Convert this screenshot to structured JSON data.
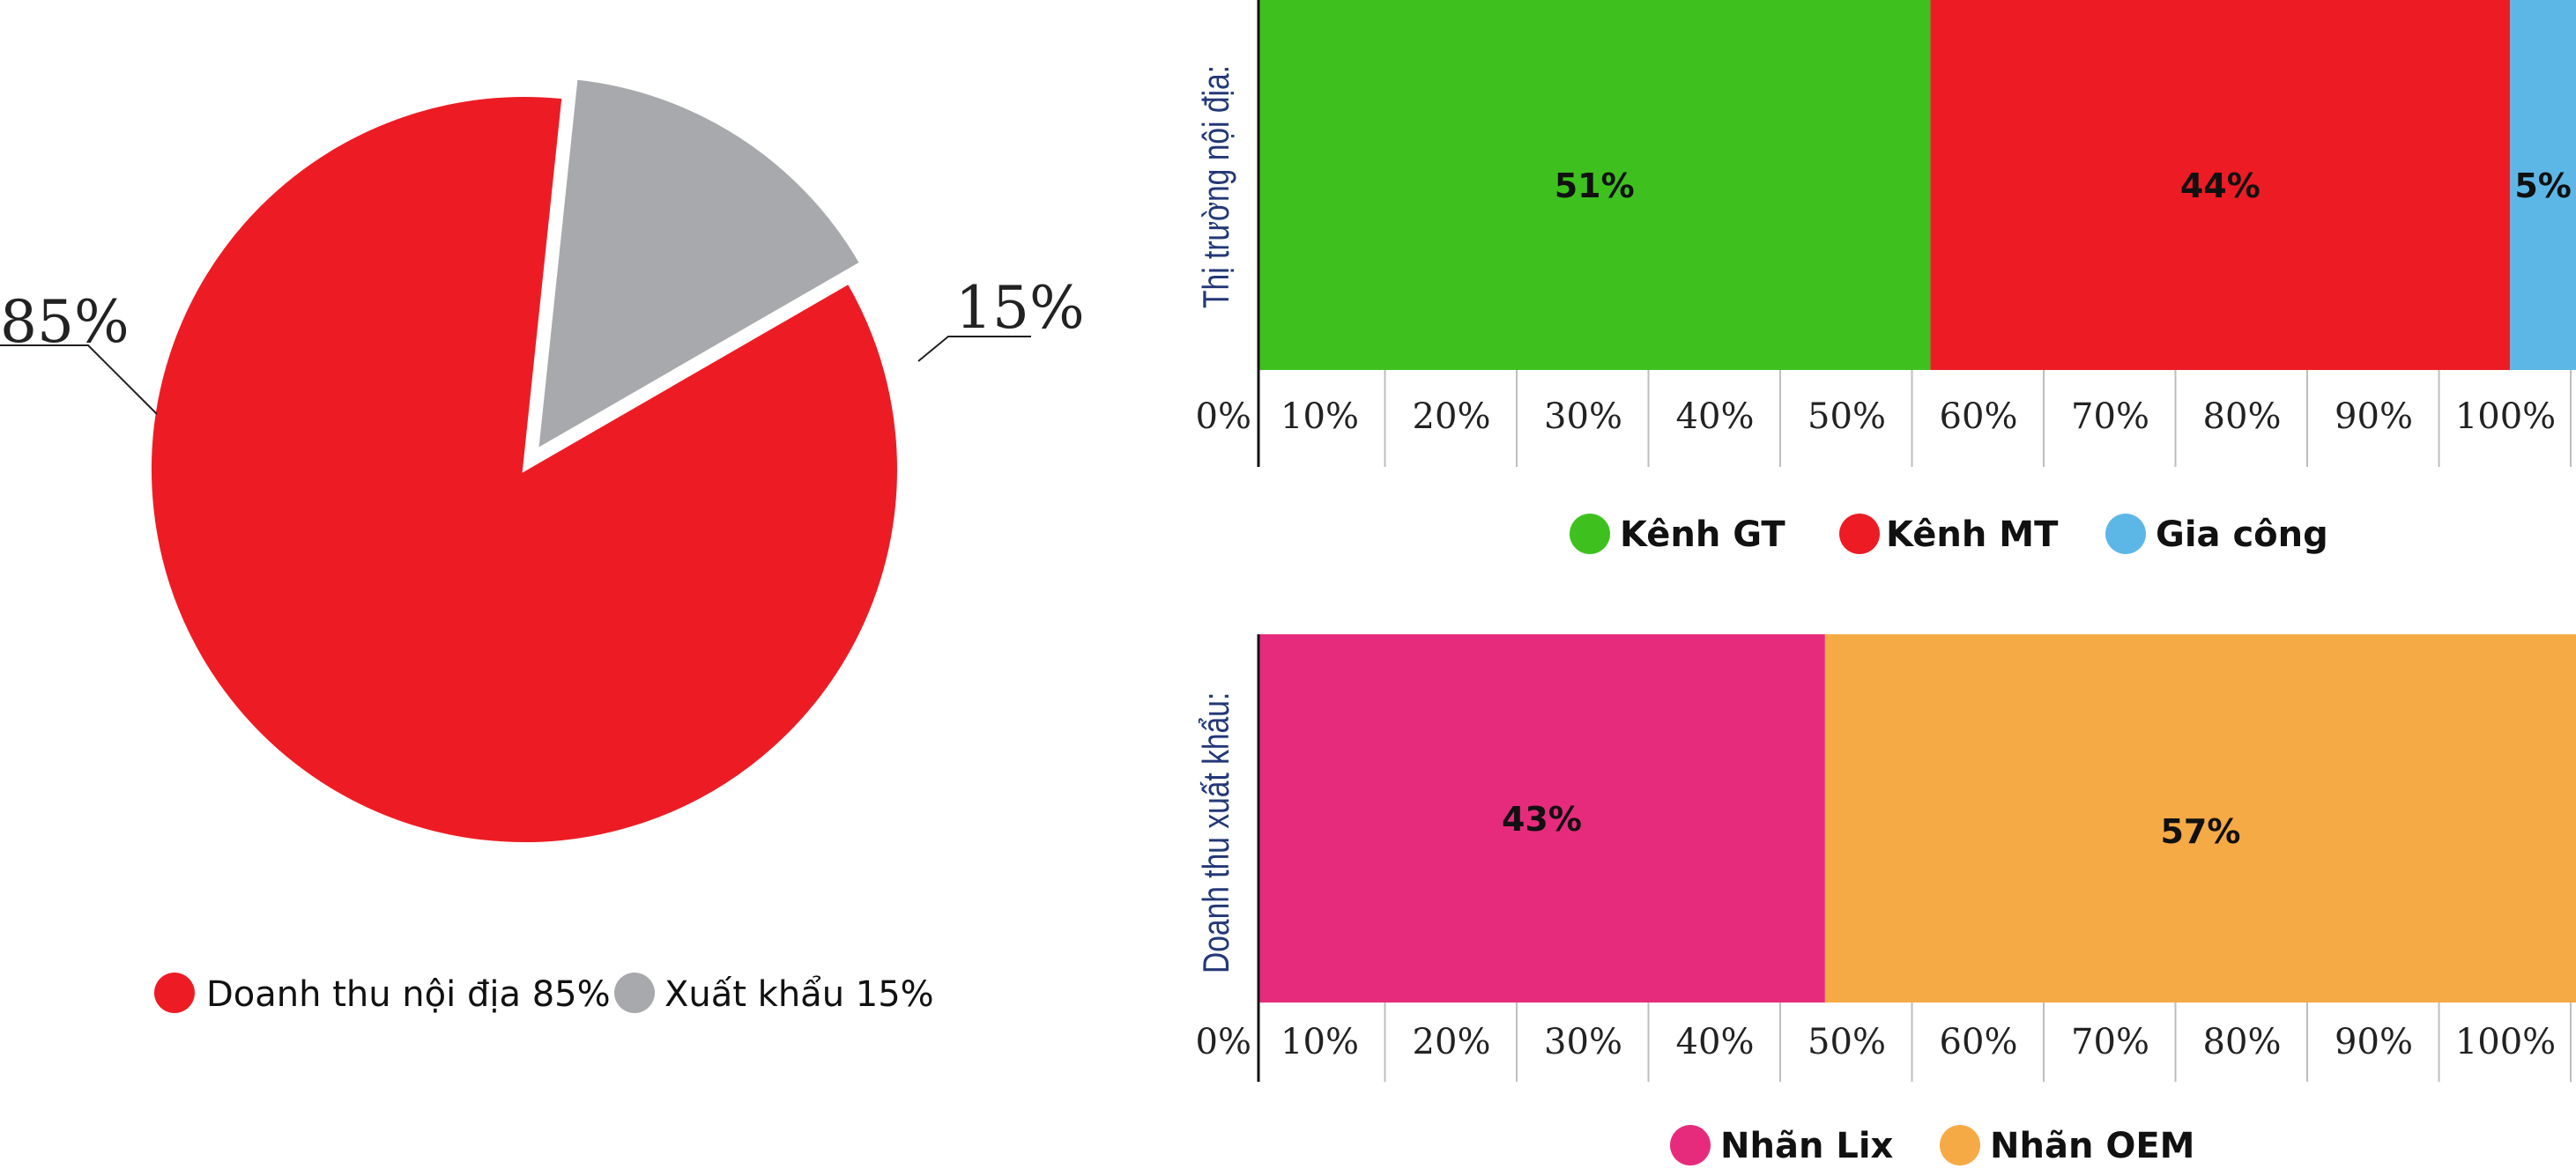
{
  "chart_data": [
    {
      "type": "pie",
      "slices": [
        {
          "name": "Doanh thu nội địa",
          "value": 85,
          "data_label": "85%",
          "legend": "Doanh thu nội địa 85%",
          "color": "#ED1C24"
        },
        {
          "name": "Xuất khẩu",
          "value": 15,
          "data_label": "15%",
          "legend": "Xuất khẩu 15%",
          "color": "#A7A9AC"
        }
      ],
      "exploded": "Xuất khẩu",
      "legend_position": "bottom"
    },
    {
      "type": "bar",
      "orientation": "horizontal-stacked",
      "ylabel": "Thị trường nội địa:",
      "series": [
        {
          "name": "Kênh GT",
          "value": 51,
          "label": "51%",
          "color": "#3EC11F"
        },
        {
          "name": "Kênh MT",
          "value": 44,
          "label": "44%",
          "color": "#ED1C24"
        },
        {
          "name": "Gia công",
          "value": 5,
          "label": "5%",
          "color": "#5DB7E6"
        }
      ],
      "xlim": [
        0,
        100
      ],
      "ticks": [
        "0%",
        "10%",
        "20%",
        "30%",
        "40%",
        "50%",
        "60%",
        "70%",
        "80%",
        "90%",
        "100%"
      ],
      "grid": true,
      "legend_position": "bottom"
    },
    {
      "type": "bar",
      "orientation": "horizontal-stacked",
      "ylabel": "Doanh thu xuất khẩu:",
      "series": [
        {
          "name": "Nhãn Lix",
          "value": 43,
          "label": "43%",
          "color": "#E72B7C"
        },
        {
          "name": "Nhãn OEM",
          "value": 57,
          "label": "57%",
          "color": "#F6AA45"
        }
      ],
      "xlim": [
        0,
        100
      ],
      "ticks": [
        "0%",
        "10%",
        "20%",
        "30%",
        "40%",
        "50%",
        "60%",
        "70%",
        "80%",
        "90%",
        "100%"
      ],
      "grid": true,
      "legend_position": "bottom"
    }
  ]
}
